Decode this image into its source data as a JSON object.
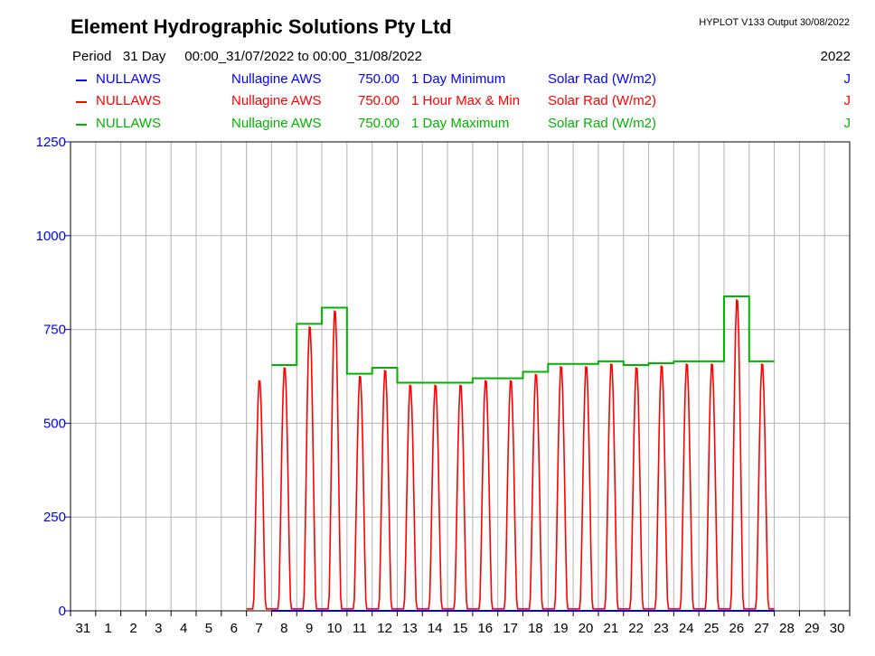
{
  "header": {
    "title": "Element Hydrographic Solutions Pty Ltd",
    "version": "HYPLOT V133  Output 30/08/2022",
    "period_label": "Period   31 Day",
    "period_range": "00:00_31/07/2022 to 00:00_31/08/2022",
    "year": "2022"
  },
  "legend": [
    {
      "station": "NULLAWS",
      "site": "Nullagine AWS",
      "var": "750.00",
      "agg": "1 Day Minimum",
      "param": "Solar Rad (W/m2)",
      "flag": "J",
      "color": "#0000ff"
    },
    {
      "station": "NULLAWS",
      "site": "Nullagine AWS",
      "var": "750.00",
      "agg": "1 Hour Max & Min",
      "param": "Solar Rad (W/m2)",
      "flag": "J",
      "color": "#ff0000"
    },
    {
      "station": "NULLAWS",
      "site": "Nullagine AWS",
      "var": "750.00",
      "agg": "1 Day Maximum",
      "param": "Solar Rad (W/m2)",
      "flag": "J",
      "color": "#00b400"
    }
  ],
  "chart_data": {
    "type": "line",
    "ylim": [
      0,
      1250
    ],
    "yticks": [
      0,
      250,
      500,
      750,
      1000,
      1250
    ],
    "ytick_labels": [
      "0",
      "250",
      "500",
      "750",
      "1000",
      "1250"
    ],
    "x_tick_labels": [
      "31",
      "1",
      "2",
      "3",
      "4",
      "5",
      "6",
      "7",
      "8",
      "9",
      "10",
      "11",
      "12",
      "13",
      "14",
      "15",
      "16",
      "17",
      "18",
      "19",
      "20",
      "21",
      "22",
      "23",
      "24",
      "25",
      "26",
      "27",
      "28",
      "29",
      "30"
    ],
    "grid": true,
    "series": [
      {
        "name": "1 Day Minimum",
        "color": "#0000ff",
        "days": [
          "8",
          "9",
          "10",
          "11",
          "12",
          "13",
          "14",
          "15",
          "16",
          "17",
          "18",
          "19",
          "20",
          "21",
          "22",
          "23",
          "24",
          "25",
          "26",
          "27"
        ],
        "values": [
          0,
          0,
          0,
          0,
          0,
          0,
          0,
          0,
          0,
          0,
          0,
          0,
          0,
          0,
          0,
          0,
          0,
          0,
          0,
          0
        ]
      },
      {
        "name": "1 Day Maximum",
        "color": "#00b400",
        "days": [
          "8",
          "9",
          "10",
          "11",
          "12",
          "13",
          "14",
          "15",
          "16",
          "17",
          "18",
          "19",
          "20",
          "21",
          "22",
          "23",
          "24",
          "25",
          "26",
          "27"
        ],
        "values": [
          655,
          765,
          808,
          632,
          648,
          608,
          608,
          608,
          620,
          620,
          637,
          658,
          658,
          665,
          655,
          660,
          665,
          665,
          838,
          665
        ]
      },
      {
        "name": "1 Hour Max & Min",
        "color": "#ff0000",
        "days": [
          "7",
          "8",
          "9",
          "10",
          "11",
          "12",
          "13",
          "14",
          "15",
          "16",
          "17",
          "18",
          "19",
          "20",
          "21",
          "22",
          "23",
          "24",
          "25",
          "26",
          "27"
        ],
        "values": [
          620,
          655,
          765,
          808,
          632,
          648,
          608,
          608,
          608,
          620,
          620,
          637,
          658,
          658,
          665,
          655,
          660,
          665,
          665,
          838,
          665
        ]
      }
    ]
  }
}
